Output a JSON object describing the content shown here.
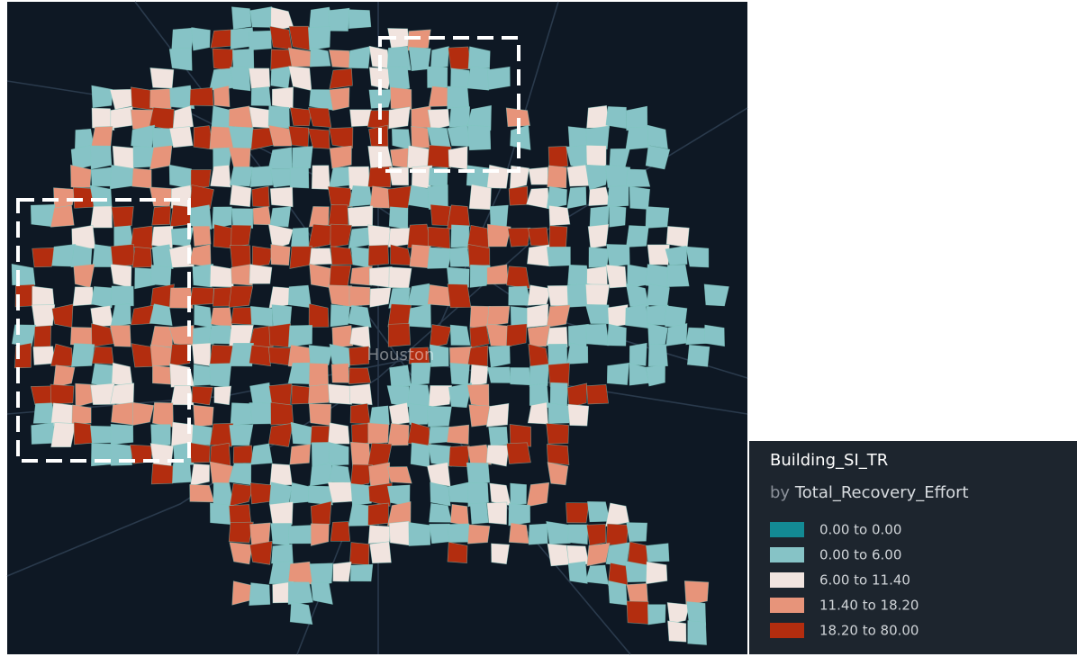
{
  "map": {
    "place_label": "Houston",
    "legend": {
      "title": "Building_SI_TR",
      "by": "by",
      "field": "Total_Recovery_Effort",
      "items": [
        {
          "label": "0.00 to 0.00",
          "color": "#138a94"
        },
        {
          "label": "0.00 to 6.00",
          "color": "#86c3c6"
        },
        {
          "label": "6.00 to 11.40",
          "color": "#f1e4df"
        },
        {
          "label": "11.40 to 18.20",
          "color": "#e7947a"
        },
        {
          "label": "18.20 to 80.00",
          "color": "#b32d0f"
        }
      ]
    }
  }
}
